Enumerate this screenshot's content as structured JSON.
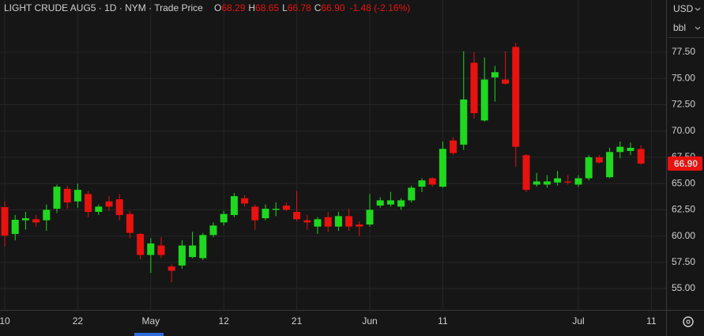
{
  "chart_data": {
    "type": "candlestick",
    "title": "LIGHT CRUDE AUG5 · 1D · NYM · Trade Price",
    "legend_items": [
      {
        "key": "O",
        "value": "68.29"
      },
      {
        "key": "H",
        "value": "68.65"
      },
      {
        "key": "L",
        "value": "66.78"
      },
      {
        "key": "C",
        "value": "66.90"
      }
    ],
    "change": "-1.48 (-2.16%)",
    "currency": "USD",
    "unit": "bbl",
    "last_price_label": "66.90",
    "up_color": "#1fd81f",
    "down_color": "#e8120f",
    "grid": true,
    "categories": [
      "10",
      null,
      null,
      null,
      null,
      null,
      null,
      "22",
      null,
      null,
      null,
      null,
      null,
      null,
      "May",
      null,
      null,
      null,
      null,
      null,
      null,
      "12",
      null,
      null,
      null,
      null,
      null,
      null,
      "21",
      null,
      null,
      null,
      null,
      null,
      null,
      "Jun",
      null,
      null,
      null,
      null,
      null,
      null,
      "11",
      null,
      null,
      null,
      null,
      null,
      null,
      null,
      null,
      null,
      null,
      null,
      null,
      "Jul",
      null,
      null,
      null,
      null,
      null,
      null,
      "11"
    ],
    "open": [
      62.75,
      60.2,
      61.5,
      61.6,
      61.5,
      62.6,
      64.5,
      63.3,
      64.0,
      62.3,
      63.3,
      63.5,
      62.1,
      60.2,
      58.2,
      59.1,
      57.1,
      57.2,
      58.0,
      57.9,
      60.1,
      61.3,
      62.0,
      63.6,
      62.8,
      61.7,
      62.5,
      62.9,
      62.3,
      61.5,
      60.9,
      61.8,
      60.9,
      61.9,
      61.1,
      61.1,
      62.9,
      63.0,
      62.8,
      63.4,
      64.7,
      65.5,
      64.7,
      69.1,
      68.7,
      76.5,
      71.0,
      75.1,
      74.9,
      78.0,
      67.7,
      64.9,
      64.9,
      65.1,
      65.2,
      64.9,
      65.5,
      67.5,
      65.6,
      68.0,
      68.1,
      68.29,
      null
    ],
    "high": [
      63.3,
      62.0,
      62.3,
      62.0,
      63.0,
      64.9,
      64.8,
      65.0,
      64.3,
      63.0,
      63.8,
      64.0,
      62.4,
      60.3,
      59.8,
      59.9,
      57.3,
      59.6,
      60.4,
      60.3,
      61.3,
      62.4,
      64.1,
      63.9,
      63.0,
      63.0,
      63.2,
      63.2,
      64.3,
      62.0,
      61.8,
      62.3,
      62.3,
      62.6,
      61.4,
      64.0,
      63.7,
      64.2,
      63.6,
      64.8,
      65.5,
      65.6,
      69.0,
      69.4,
      77.6,
      77.5,
      77.0,
      76.2,
      77.6,
      78.4,
      67.8,
      66.0,
      65.8,
      66.2,
      65.8,
      65.8,
      67.7,
      67.7,
      68.4,
      69.0,
      68.9,
      68.65,
      null
    ],
    "low": [
      59.0,
      59.6,
      60.6,
      60.9,
      60.5,
      62.2,
      62.6,
      62.7,
      61.8,
      62.0,
      62.4,
      61.5,
      59.8,
      57.8,
      56.5,
      57.9,
      55.6,
      56.9,
      57.9,
      57.7,
      59.9,
      61.0,
      61.8,
      62.8,
      60.6,
      61.5,
      61.9,
      62.4,
      61.4,
      60.6,
      60.2,
      60.4,
      60.5,
      60.5,
      60.0,
      60.9,
      62.7,
      62.8,
      62.5,
      63.2,
      64.2,
      64.7,
      64.6,
      67.7,
      68.2,
      71.2,
      70.9,
      72.8,
      74.4,
      66.6,
      64.2,
      64.7,
      64.6,
      64.8,
      64.9,
      64.7,
      65.3,
      66.9,
      65.5,
      67.4,
      67.7,
      66.78,
      null
    ],
    "close": [
      60.05,
      61.55,
      61.7,
      61.3,
      62.5,
      64.7,
      63.2,
      64.4,
      62.3,
      62.8,
      62.8,
      62.0,
      60.3,
      58.2,
      59.3,
      58.2,
      56.7,
      59.1,
      59.1,
      60.1,
      61.0,
      62.1,
      63.8,
      63.1,
      61.5,
      62.6,
      62.6,
      62.5,
      61.6,
      61.3,
      61.6,
      60.9,
      61.9,
      60.9,
      60.9,
      62.5,
      63.4,
      63.4,
      63.4,
      64.6,
      65.3,
      64.9,
      68.3,
      67.9,
      73.0,
      71.7,
      74.9,
      75.6,
      74.5,
      68.5,
      64.4,
      65.2,
      65.2,
      65.5,
      65.1,
      65.5,
      67.5,
      67.0,
      68.0,
      68.5,
      68.4,
      66.9,
      null
    ],
    "ylim": [
      52.97,
      82.47
    ],
    "yticks": [
      {
        "value": 55,
        "label": "55.00"
      },
      {
        "value": 57.5,
        "label": "57.50"
      },
      {
        "value": 60,
        "label": "60.00"
      },
      {
        "value": 62.5,
        "label": "62.50"
      },
      {
        "value": 65,
        "label": "65.00"
      },
      {
        "value": 67.5,
        "label": "67.50"
      },
      {
        "value": 70,
        "label": "70.00"
      },
      {
        "value": 72.5,
        "label": "72.50"
      },
      {
        "value": 75,
        "label": "75.00"
      },
      {
        "value": 77.5,
        "label": "77.50"
      }
    ]
  }
}
